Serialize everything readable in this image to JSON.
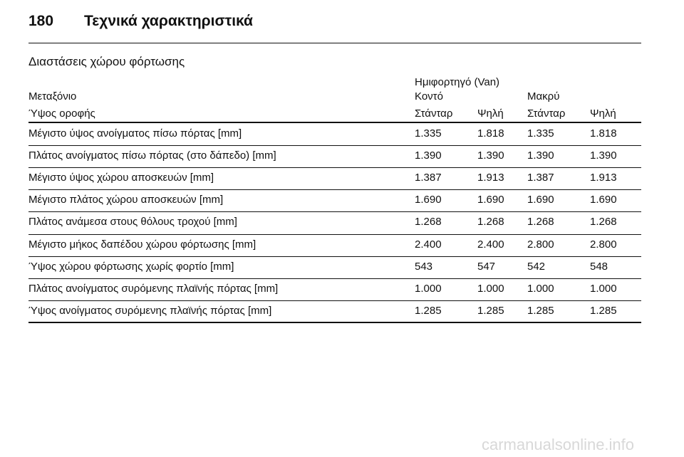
{
  "header": {
    "page_number": "180",
    "title": "Τεχνικά χαρακτηριστικά"
  },
  "section_title": "Διαστάσεις χώρου φόρτωσης",
  "table": {
    "group_header": "Ημιφορτηγό (Van)",
    "wheelbase_label": "Μεταξόνιο",
    "wheelbase_values": [
      "Κοντό",
      "Μακρύ"
    ],
    "roof_label": "Ύψος οροφής",
    "roof_values": [
      "Στάνταρ",
      "Ψηλή",
      "Στάνταρ",
      "Ψηλή"
    ],
    "rows": [
      [
        "Μέγιστο ύψος ανοίγματος πίσω πόρτας [mm]",
        "1.335",
        "1.818",
        "1.335",
        "1.818"
      ],
      [
        "Πλάτος ανοίγματος πίσω πόρτας (στο δάπεδο) [mm]",
        "1.390",
        "1.390",
        "1.390",
        "1.390"
      ],
      [
        "Μέγιστο ύψος χώρου αποσκευών [mm]",
        "1.387",
        "1.913",
        "1.387",
        "1.913"
      ],
      [
        "Μέγιστο πλάτος χώρου αποσκευών [mm]",
        "1.690",
        "1.690",
        "1.690",
        "1.690"
      ],
      [
        "Πλάτος ανάμεσα στους θόλους τροχού [mm]",
        "1.268",
        "1.268",
        "1.268",
        "1.268"
      ],
      [
        "Μέγιστο μήκος δαπέδου χώρου φόρτωσης [mm]",
        "2.400",
        "2.400",
        "2.800",
        "2.800"
      ],
      [
        "Ύψος χώρου φόρτωσης χωρίς φορτίο [mm]",
        "543",
        "547",
        "542",
        "548"
      ],
      [
        "Πλάτος ανοίγματος συρόμενης πλαϊνής πόρτας [mm]",
        "1.000",
        "1.000",
        "1.000",
        "1.000"
      ],
      [
        "Ύψος ανοίγματος συρόμενης πλαϊνής πόρτας [mm]",
        "1.285",
        "1.285",
        "1.285",
        "1.285"
      ]
    ]
  },
  "watermark": "carmanualsonline.info"
}
